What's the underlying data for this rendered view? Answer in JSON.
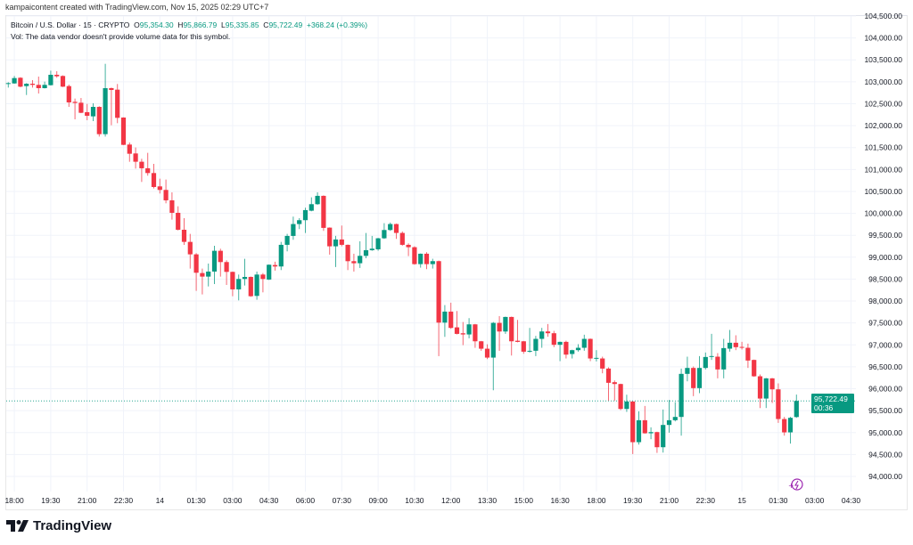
{
  "credit": "kampaicontent created with TradingView.com, Nov 15, 2025 02:29 UTC+7",
  "legend": {
    "symbol": "Bitcoin / U.S. Dollar · 15 · CRYPTO",
    "o_label": "O",
    "o": "95,354.30",
    "h_label": "H",
    "h": "95,866.79",
    "l_label": "L",
    "l": "95,335.85",
    "c_label": "C",
    "c": "95,722.49",
    "change": "+368.24 (+0.39%)",
    "vol_note": "Vol: The data vendor doesn't provide volume data for this symbol."
  },
  "price_tag": {
    "price": "95,722.49",
    "countdown": "00:36"
  },
  "brand": "TradingView",
  "colors": {
    "up": "#089981",
    "down": "#f23645",
    "grid": "#f0f3fa",
    "alert": "#9c27b0"
  },
  "chart_data": {
    "type": "candlestick",
    "title": "Bitcoin / U.S. Dollar · 15 · CRYPTO",
    "ylim": [
      94000,
      104500
    ],
    "y_ticks": [
      104500,
      104000,
      103500,
      103000,
      102500,
      102000,
      101500,
      101000,
      100500,
      100000,
      99500,
      99000,
      98500,
      98000,
      97500,
      97000,
      96500,
      96000,
      95500,
      95000,
      94500,
      94000
    ],
    "y_tick_labels": [
      "104,500.00",
      "104,000.00",
      "103,500.00",
      "103,000.00",
      "102,500.00",
      "102,000.00",
      "101,500.00",
      "101,000.00",
      "100,500.00",
      "100,000.00",
      "99,500.00",
      "99,000.00",
      "98,500.00",
      "98,000.00",
      "97,500.00",
      "97,000.00",
      "96,500.00",
      "96,000.00",
      "95,500.00",
      "95,000.00",
      "94,500.00",
      "94,000.00"
    ],
    "x_ticks": [
      {
        "label": "18:00",
        "index": 1
      },
      {
        "label": "19:30",
        "index": 7
      },
      {
        "label": "21:00",
        "index": 13
      },
      {
        "label": "22:30",
        "index": 19
      },
      {
        "label": "14",
        "index": 25
      },
      {
        "label": "01:30",
        "index": 31
      },
      {
        "label": "03:00",
        "index": 37
      },
      {
        "label": "04:30",
        "index": 43
      },
      {
        "label": "06:00",
        "index": 49
      },
      {
        "label": "07:30",
        "index": 55
      },
      {
        "label": "09:00",
        "index": 61
      },
      {
        "label": "10:30",
        "index": 67
      },
      {
        "label": "12:00",
        "index": 73
      },
      {
        "label": "13:30",
        "index": 79
      },
      {
        "label": "15:00",
        "index": 85
      },
      {
        "label": "16:30",
        "index": 91
      },
      {
        "label": "18:00",
        "index": 97
      },
      {
        "label": "19:30",
        "index": 103
      },
      {
        "label": "21:00",
        "index": 109
      },
      {
        "label": "22:30",
        "index": 115
      },
      {
        "label": "15",
        "index": 121
      },
      {
        "label": "01:30",
        "index": 127
      },
      {
        "label": "03:00",
        "index": 133
      },
      {
        "label": "04:30",
        "index": 139
      }
    ],
    "total_slots": 141,
    "last_price": 95722.49,
    "ohlc": [
      [
        102963,
        102990,
        102868,
        102970
      ],
      [
        102963,
        103132,
        102955,
        103085
      ],
      [
        103092,
        103105,
        102875,
        102889
      ],
      [
        102902,
        102970,
        102699,
        102956
      ],
      [
        102956,
        103038,
        102868,
        102930
      ],
      [
        102930,
        103119,
        102733,
        102855
      ],
      [
        102855,
        103004,
        102848,
        102930
      ],
      [
        102923,
        103254,
        102915,
        103160
      ],
      [
        103160,
        103241,
        103092,
        103126
      ],
      [
        103133,
        103146,
        102880,
        102889
      ],
      [
        102902,
        102936,
        102428,
        102530
      ],
      [
        102543,
        102618,
        102144,
        102517
      ],
      [
        102523,
        102631,
        102285,
        102293
      ],
      [
        102307,
        102496,
        102124,
        102225
      ],
      [
        102212,
        102510,
        102104,
        102428
      ],
      [
        102428,
        102442,
        101751,
        101806
      ],
      [
        101806,
        103410,
        101751,
        102855
      ],
      [
        102855,
        102869,
        102009,
        102814
      ],
      [
        102821,
        102950,
        102056,
        102178
      ],
      [
        102185,
        102190,
        101557,
        101562
      ],
      [
        101569,
        101616,
        101176,
        101359
      ],
      [
        101366,
        101502,
        101021,
        101177
      ],
      [
        101177,
        101244,
        100716,
        101028
      ],
      [
        101028,
        101380,
        100859,
        100919
      ],
      [
        100919,
        101129,
        100567,
        100601
      ],
      [
        100615,
        100791,
        100452,
        100534
      ],
      [
        100534,
        100771,
        100229,
        100297
      ],
      [
        100297,
        100479,
        99857,
        100012
      ],
      [
        100012,
        100161,
        99610,
        99626
      ],
      [
        99626,
        99890,
        99281,
        99349
      ],
      [
        99349,
        99532,
        98740,
        99065
      ],
      [
        99065,
        99092,
        98232,
        98645
      ],
      [
        98638,
        98740,
        98151,
        98557
      ],
      [
        98557,
        98855,
        98333,
        98672
      ],
      [
        98672,
        99261,
        98387,
        99146
      ],
      [
        99146,
        99193,
        98557,
        98889
      ],
      [
        98889,
        98929,
        98367,
        98665
      ],
      [
        98665,
        98672,
        98110,
        98266
      ],
      [
        98266,
        98604,
        98015,
        98503
      ],
      [
        98503,
        98963,
        98354,
        98550
      ],
      [
        98550,
        98560,
        98096,
        98110
      ],
      [
        98117,
        98672,
        98029,
        98604
      ],
      [
        98604,
        98638,
        98198,
        98503
      ],
      [
        98490,
        98835,
        98480,
        98828
      ],
      [
        98821,
        98896,
        98693,
        98788
      ],
      [
        98788,
        99349,
        98706,
        99282
      ],
      [
        99282,
        99532,
        99133,
        99485
      ],
      [
        99485,
        99925,
        99397,
        99756
      ],
      [
        99756,
        99891,
        99641,
        99844
      ],
      [
        99844,
        100128,
        99553,
        100074
      ],
      [
        100060,
        100365,
        100047,
        100209
      ],
      [
        100209,
        100480,
        100196,
        100399
      ],
      [
        100399,
        100410,
        99600,
        99668
      ],
      [
        99674,
        99680,
        99058,
        99248
      ],
      [
        99248,
        99485,
        98774,
        99404
      ],
      [
        99404,
        99722,
        99248,
        99282
      ],
      [
        99282,
        99290,
        98706,
        98909
      ],
      [
        98909,
        99079,
        98672,
        98862
      ],
      [
        98862,
        99363,
        98754,
        99031
      ],
      [
        99031,
        99553,
        98977,
        99160
      ],
      [
        99160,
        99485,
        99146,
        99194
      ],
      [
        99180,
        99440,
        99146,
        99431
      ],
      [
        99431,
        99776,
        99417,
        99620
      ],
      [
        99620,
        99790,
        99600,
        99756
      ],
      [
        99756,
        99765,
        99417,
        99553
      ],
      [
        99553,
        99587,
        99262,
        99282
      ],
      [
        99282,
        99316,
        99025,
        99228
      ],
      [
        99228,
        99248,
        98829,
        98842
      ],
      [
        98842,
        99085,
        98761,
        99079
      ],
      [
        99079,
        99113,
        98727,
        98842
      ],
      [
        98842,
        98964,
        98741,
        98910
      ],
      [
        98910,
        98923,
        96743,
        97508
      ],
      [
        97508,
        97908,
        97183,
        97759
      ],
      [
        97759,
        97962,
        97366,
        97387
      ],
      [
        97400,
        97772,
        97240,
        97251
      ],
      [
        97265,
        97522,
        96994,
        97238
      ],
      [
        97238,
        97610,
        97150,
        97468
      ],
      [
        97468,
        97478,
        96933,
        97082
      ],
      [
        97082,
        97090,
        96865,
        96913
      ],
      [
        96913,
        97014,
        96676,
        96710
      ],
      [
        96710,
        97522,
        95965,
        97502
      ],
      [
        97502,
        97657,
        96865,
        97305
      ],
      [
        97305,
        97645,
        97251,
        97637
      ],
      [
        97637,
        97645,
        96757,
        97082
      ],
      [
        97095,
        97569,
        97060,
        97068
      ],
      [
        97082,
        97090,
        96798,
        96845
      ],
      [
        96845,
        97387,
        96825,
        96865
      ],
      [
        96866,
        97205,
        96744,
        97137
      ],
      [
        97137,
        97388,
        96934,
        97306
      ],
      [
        97306,
        97476,
        97185,
        97266
      ],
      [
        97266,
        97320,
        96948,
        97002
      ],
      [
        97002,
        97075,
        96629,
        97069
      ],
      [
        97069,
        97096,
        96690,
        96778
      ],
      [
        96792,
        96890,
        96690,
        96880
      ],
      [
        96880,
        97015,
        96846,
        96934
      ],
      [
        96934,
        97232,
        96866,
        97137
      ],
      [
        97137,
        97145,
        96629,
        96690
      ],
      [
        96690,
        96880,
        96623,
        96704
      ],
      [
        96690,
        96731,
        96352,
        96460
      ],
      [
        96460,
        96487,
        95729,
        96135
      ],
      [
        96149,
        96189,
        95729,
        96108
      ],
      [
        96108,
        96115,
        95512,
        95539
      ],
      [
        95539,
        95864,
        95472,
        95709
      ],
      [
        95709,
        95715,
        94510,
        94781
      ],
      [
        94781,
        95485,
        94727,
        95282
      ],
      [
        95282,
        95607,
        94975,
        94984
      ],
      [
        94984,
        95120,
        94849,
        95011
      ],
      [
        95011,
        95020,
        94537,
        94666
      ],
      [
        94666,
        95526,
        94544,
        95174
      ],
      [
        95174,
        95743,
        94998,
        95282
      ],
      [
        95282,
        95695,
        95255,
        95357
      ],
      [
        95357,
        96460,
        94930,
        96339
      ],
      [
        96339,
        96731,
        96169,
        96474
      ],
      [
        96474,
        96508,
        95831,
        96014
      ],
      [
        96014,
        96745,
        95898,
        96474
      ],
      [
        96474,
        96826,
        96440,
        96724
      ],
      [
        96731,
        97252,
        96657,
        96745
      ],
      [
        96731,
        96812,
        96237,
        96440
      ],
      [
        96440,
        97137,
        96237,
        96927
      ],
      [
        96914,
        97340,
        96846,
        97049
      ],
      [
        97049,
        97219,
        96880,
        96948
      ],
      [
        96954,
        97070,
        96894,
        96934
      ],
      [
        96934,
        97029,
        96474,
        96643
      ],
      [
        96657,
        96665,
        96271,
        96284
      ],
      [
        96284,
        96325,
        95560,
        95776
      ],
      [
        95776,
        96245,
        95560,
        96237
      ],
      [
        96237,
        96245,
        95675,
        95986
      ],
      [
        95986,
        96122,
        95221,
        95309
      ],
      [
        95309,
        95357,
        94930,
        95005
      ],
      [
        95005,
        95357,
        94748,
        95337
      ],
      [
        95354.3,
        95866.79,
        95335.85,
        95722.49
      ]
    ]
  }
}
